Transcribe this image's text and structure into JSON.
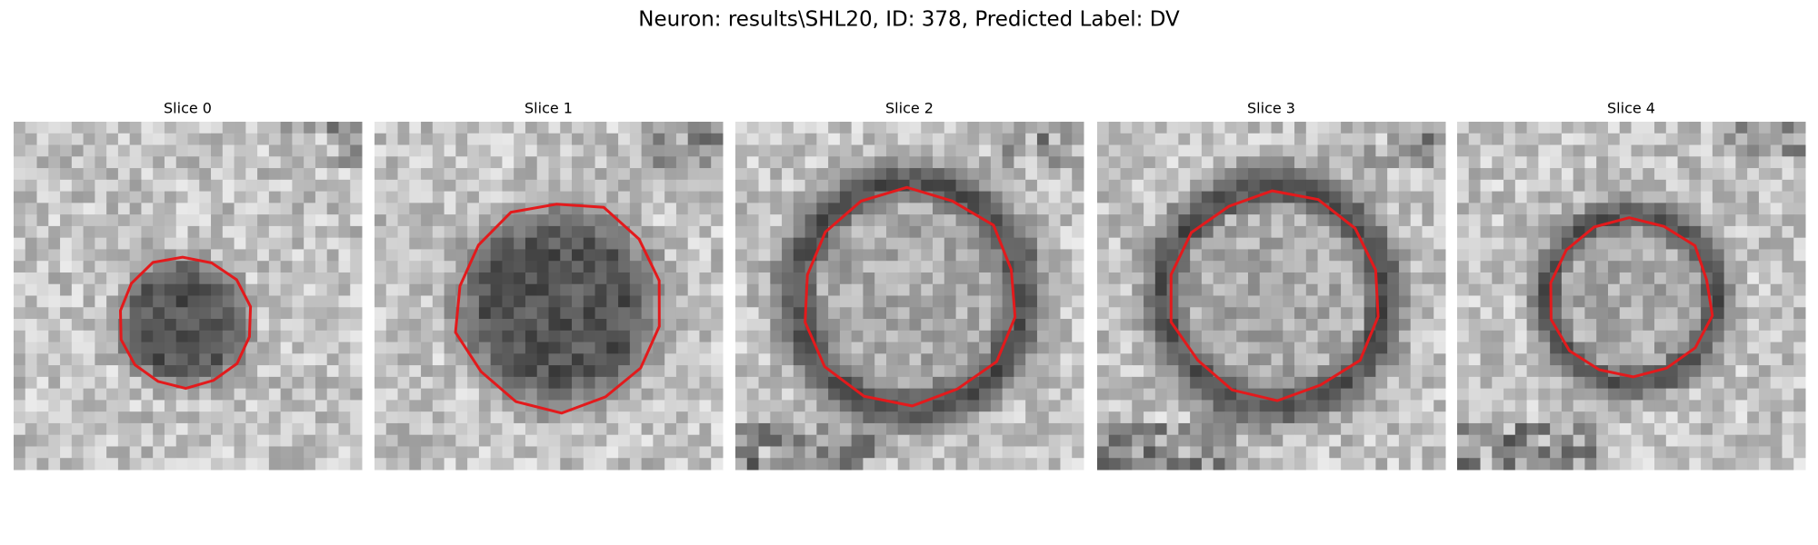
{
  "title": "Neuron: results\\SHL20, ID: 378, Predicted Label: DV",
  "panels": [
    {
      "title": "Slice 0"
    },
    {
      "title": "Slice 1"
    },
    {
      "title": "Slice 2"
    },
    {
      "title": "Slice 3"
    },
    {
      "title": "Slice 4"
    }
  ]
}
